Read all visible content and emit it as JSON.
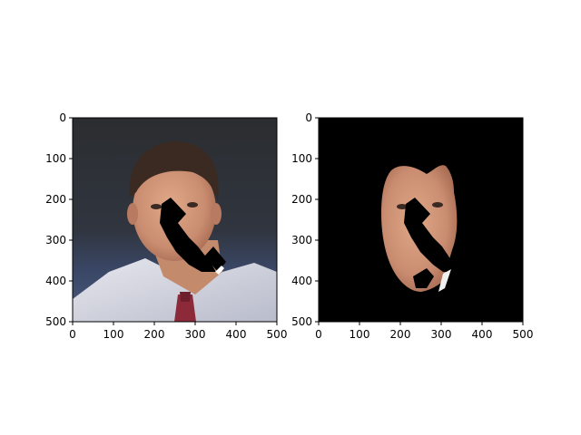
{
  "chart_data": [
    {
      "type": "image",
      "x_ticks": [
        0,
        100,
        200,
        300,
        400,
        500
      ],
      "y_ticks": [
        0,
        100,
        200,
        300,
        400,
        500
      ],
      "xlim": [
        0,
        500
      ],
      "ylim": [
        500,
        0
      ],
      "grid": false
    },
    {
      "type": "image",
      "x_ticks": [
        0,
        100,
        200,
        300,
        400,
        500
      ],
      "y_ticks": [
        0,
        100,
        200,
        300,
        400,
        500
      ],
      "xlim": [
        0,
        500
      ],
      "ylim": [
        500,
        0
      ],
      "grid": false
    }
  ]
}
